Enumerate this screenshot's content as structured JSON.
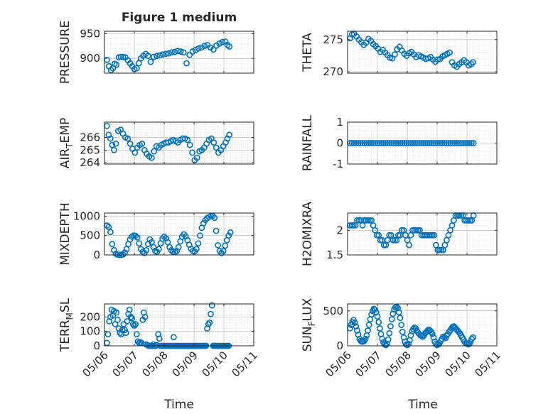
{
  "figure": {
    "title": "Figure 1 medium",
    "marker_color": "#0072BD",
    "axis_color": "#262626",
    "grid_color": "#d9d9d9"
  },
  "x_axis": {
    "label": "Time",
    "range": [
      "2023-05-06",
      "2023-05-11"
    ],
    "tick_labels": [
      "05/06",
      "05/07",
      "05/08",
      "05/09",
      "05/10",
      "05/11"
    ]
  },
  "chart_data": [
    {
      "type": "scatter",
      "name": "pressure",
      "ylabel": "PRESSURE",
      "ylim": [
        870,
        955
      ],
      "yticks": [
        900,
        950
      ],
      "x_days": [
        0.08,
        0.15,
        0.22,
        0.28,
        0.34,
        0.4,
        0.48,
        0.55,
        0.62,
        0.7,
        0.78,
        0.86,
        0.93,
        1.0,
        1.08,
        1.15,
        1.22,
        1.3,
        1.38,
        1.46,
        1.55,
        1.65,
        1.75,
        1.85,
        1.95,
        2.05,
        2.15,
        2.25,
        2.35,
        2.45,
        2.55,
        2.65,
        2.75,
        2.85,
        2.95,
        3.05,
        3.15,
        3.25,
        3.35,
        3.45,
        3.55,
        3.65,
        3.75,
        3.85,
        3.95,
        4.05,
        4.12,
        4.18
      ],
      "y": [
        897,
        884,
        876,
        880,
        889,
        887,
        902,
        903,
        903,
        902,
        896,
        890,
        884,
        878,
        880,
        890,
        900,
        905,
        909,
        905,
        893,
        903,
        905,
        906,
        908,
        909,
        910,
        912,
        913,
        915,
        914,
        912,
        890,
        907,
        914,
        917,
        920,
        922,
        925,
        927,
        922,
        918,
        926,
        930,
        933,
        934,
        927,
        924
      ]
    },
    {
      "type": "scatter",
      "name": "theta",
      "ylabel": "THETA",
      "ylim": [
        269.8,
        276.3
      ],
      "yticks": [
        270,
        275
      ],
      "x_days": [
        0.08,
        0.15,
        0.22,
        0.3,
        0.38,
        0.46,
        0.54,
        0.62,
        0.7,
        0.78,
        0.86,
        0.94,
        1.02,
        1.1,
        1.18,
        1.26,
        1.34,
        1.42,
        1.5,
        1.58,
        1.66,
        1.74,
        1.82,
        1.9,
        1.98,
        2.06,
        2.14,
        2.22,
        2.3,
        2.38,
        2.46,
        2.54,
        2.62,
        2.7,
        2.78,
        2.86,
        2.94,
        3.02,
        3.1,
        3.18,
        3.26,
        3.34,
        3.42,
        3.5,
        3.58,
        3.66,
        3.74,
        3.82,
        3.9,
        3.98,
        4.06,
        4.14,
        4.2
      ],
      "y": [
        275.2,
        275.8,
        275.9,
        275.5,
        275.0,
        274.6,
        274.2,
        274.5,
        275.1,
        274.8,
        274.3,
        274.0,
        273.6,
        273.1,
        273.4,
        273.0,
        272.6,
        272.2,
        272.1,
        272.7,
        273.5,
        273.9,
        273.3,
        272.8,
        272.5,
        272.9,
        273.1,
        272.7,
        272.3,
        272.6,
        272.4,
        272.2,
        272.0,
        272.1,
        272.3,
        271.9,
        271.6,
        271.9,
        272.0,
        272.4,
        272.6,
        272.8,
        273.0,
        271.5,
        271.0,
        270.8,
        271.2,
        271.5,
        271.8,
        271.5,
        271.0,
        271.2,
        271.5
      ]
    },
    {
      "type": "scatter",
      "name": "air_temp",
      "ylabel": "AIR_TEMP",
      "ylim": [
        263.9,
        267.2
      ],
      "yticks": [
        264,
        265,
        266
      ],
      "x_days": [
        0.08,
        0.14,
        0.2,
        0.26,
        0.32,
        0.38,
        0.46,
        0.54,
        0.62,
        0.7,
        0.78,
        0.86,
        0.94,
        1.02,
        1.1,
        1.18,
        1.26,
        1.34,
        1.42,
        1.5,
        1.58,
        1.66,
        1.74,
        1.82,
        1.9,
        1.98,
        2.06,
        2.14,
        2.22,
        2.3,
        2.38,
        2.46,
        2.54,
        2.62,
        2.7,
        2.78,
        2.86,
        2.94,
        3.02,
        3.1,
        3.18,
        3.26,
        3.34,
        3.42,
        3.5,
        3.58,
        3.66,
        3.74,
        3.82,
        3.9,
        3.98,
        4.06,
        4.12,
        4.18
      ],
      "y": [
        266.9,
        266.2,
        265.9,
        265.4,
        265.0,
        265.5,
        266.5,
        266.6,
        266.3,
        266.0,
        265.9,
        265.5,
        265.1,
        264.8,
        265.2,
        265.4,
        265.5,
        265.0,
        264.7,
        264.5,
        264.4,
        264.9,
        265.3,
        265.2,
        265.4,
        265.5,
        265.6,
        265.6,
        265.7,
        265.8,
        265.7,
        265.6,
        265.8,
        265.9,
        265.9,
        265.8,
        265.4,
        264.8,
        264.2,
        264.4,
        264.9,
        265.0,
        265.2,
        265.5,
        265.8,
        265.9,
        265.6,
        265.2,
        264.8,
        265.0,
        265.3,
        265.6,
        265.9,
        266.2
      ]
    },
    {
      "type": "scatter",
      "name": "rainfall",
      "ylabel": "RAINFALL",
      "ylim": [
        -1,
        1
      ],
      "yticks": [
        -1,
        0,
        1
      ],
      "x_start": 0.08,
      "x_end": 4.22,
      "count": 60,
      "y_constant": 0
    },
    {
      "type": "scatter",
      "name": "mixdepth",
      "ylabel": "MIXDEPTH",
      "ylim": [
        0,
        1080
      ],
      "yticks": [
        0,
        500,
        1000
      ],
      "x_days": [
        0.08,
        0.14,
        0.2,
        0.26,
        0.32,
        0.38,
        0.44,
        0.5,
        0.56,
        0.62,
        0.68,
        0.74,
        0.8,
        0.86,
        0.92,
        0.98,
        1.04,
        1.1,
        1.16,
        1.22,
        1.28,
        1.34,
        1.4,
        1.46,
        1.52,
        1.58,
        1.64,
        1.7,
        1.76,
        1.82,
        1.88,
        1.94,
        2.0,
        2.06,
        2.12,
        2.18,
        2.24,
        2.3,
        2.36,
        2.42,
        2.48,
        2.54,
        2.6,
        2.66,
        2.72,
        2.78,
        2.84,
        2.9,
        2.96,
        3.02,
        3.08,
        3.14,
        3.2,
        3.26,
        3.32,
        3.38,
        3.44,
        3.5,
        3.56,
        3.62,
        3.68,
        3.74,
        3.8,
        3.86,
        3.92,
        3.98,
        4.04,
        4.1,
        4.16,
        4.22
      ],
      "y": [
        760,
        720,
        590,
        280,
        120,
        30,
        10,
        5,
        5,
        10,
        60,
        150,
        280,
        400,
        470,
        500,
        495,
        450,
        300,
        150,
        80,
        50,
        120,
        280,
        400,
        330,
        200,
        100,
        80,
        150,
        300,
        420,
        470,
        430,
        330,
        200,
        120,
        80,
        70,
        100,
        200,
        350,
        470,
        530,
        480,
        380,
        260,
        160,
        100,
        90,
        150,
        300,
        500,
        700,
        820,
        900,
        950,
        980,
        1000,
        1010,
        960,
        620,
        250,
        100,
        50,
        100,
        240,
        380,
        500,
        580
      ]
    },
    {
      "type": "scatter",
      "name": "h2omixra",
      "ylabel": "H2OMIXRA",
      "ylim": [
        1.5,
        2.35
      ],
      "yticks": [
        1.5,
        2
      ],
      "x_days": [
        0.08,
        0.14,
        0.2,
        0.26,
        0.32,
        0.38,
        0.44,
        0.5,
        0.56,
        0.62,
        0.68,
        0.74,
        0.8,
        0.86,
        0.92,
        0.98,
        1.04,
        1.1,
        1.16,
        1.22,
        1.28,
        1.34,
        1.4,
        1.46,
        1.52,
        1.58,
        1.64,
        1.7,
        1.76,
        1.82,
        1.88,
        1.94,
        2.0,
        2.06,
        2.12,
        2.18,
        2.24,
        2.3,
        2.36,
        2.42,
        2.48,
        2.54,
        2.6,
        2.66,
        2.72,
        2.78,
        2.84,
        2.9,
        2.96,
        3.02,
        3.08,
        3.14,
        3.2,
        3.26,
        3.32,
        3.38,
        3.44,
        3.5,
        3.56,
        3.62,
        3.68,
        3.74,
        3.8,
        3.86,
        3.92,
        3.98,
        4.04,
        4.1,
        4.16,
        4.22
      ],
      "y": [
        2.1,
        2.1,
        2.1,
        2.1,
        2.2,
        2.2,
        2.2,
        2.1,
        2.2,
        2.2,
        2.2,
        2.2,
        2.2,
        2.1,
        2.0,
        1.9,
        1.9,
        1.8,
        1.8,
        1.7,
        1.7,
        1.8,
        1.9,
        1.9,
        1.8,
        1.8,
        1.8,
        1.9,
        1.9,
        2.0,
        2.0,
        1.9,
        1.8,
        1.7,
        1.9,
        2.0,
        2.0,
        2.0,
        2.0,
        2.0,
        1.9,
        1.9,
        1.9,
        1.9,
        1.9,
        1.9,
        1.9,
        1.9,
        1.7,
        1.6,
        1.6,
        1.6,
        1.6,
        1.7,
        1.8,
        1.9,
        2.0,
        2.1,
        2.2,
        2.3,
        2.3,
        2.3,
        2.3,
        2.3,
        2.2,
        2.2,
        2.2,
        2.2,
        2.2,
        2.3
      ]
    },
    {
      "type": "scatter",
      "name": "terr_msl",
      "ylabel": "TERR_MSL",
      "ylim": [
        0,
        290
      ],
      "yticks": [
        0,
        100,
        200
      ],
      "x_days": [
        0.08,
        0.12,
        0.16,
        0.2,
        0.24,
        0.28,
        0.32,
        0.36,
        0.4,
        0.44,
        0.48,
        0.52,
        0.56,
        0.6,
        0.64,
        0.68,
        0.72,
        0.76,
        0.8,
        0.84,
        0.88,
        0.92,
        0.96,
        1.0,
        1.04,
        1.08,
        1.12,
        1.16,
        1.2,
        1.24,
        1.28,
        1.32,
        1.36,
        1.4,
        1.44,
        1.48,
        1.52,
        1.56,
        1.6,
        1.64,
        1.68,
        1.72,
        1.76,
        1.8,
        1.84,
        1.88,
        1.92,
        1.96,
        2.0,
        2.04,
        2.08,
        2.12,
        2.16,
        2.2,
        2.24,
        2.28,
        2.32,
        2.36,
        2.4,
        2.44,
        2.48,
        2.52,
        2.56,
        2.6,
        2.64,
        2.68,
        2.72,
        2.76,
        2.8,
        2.84,
        2.88,
        2.92,
        2.96,
        3.0,
        3.04,
        3.08,
        3.12,
        3.16,
        3.2,
        3.24,
        3.28,
        3.32,
        3.36,
        3.4,
        3.44,
        3.48,
        3.52,
        3.56,
        3.6,
        3.64,
        3.68,
        3.72,
        3.76,
        3.8,
        3.84,
        3.88,
        3.92,
        3.96,
        4.0,
        4.04,
        4.08,
        4.12,
        4.16
      ],
      "y": [
        20,
        80,
        170,
        200,
        250,
        210,
        240,
        150,
        230,
        180,
        120,
        90,
        80,
        110,
        150,
        110,
        90,
        170,
        220,
        250,
        200,
        190,
        150,
        140,
        150,
        80,
        30,
        20,
        25,
        20,
        180,
        230,
        200,
        10,
        5,
        0,
        0,
        0,
        0,
        10,
        0,
        0,
        5,
        80,
        50,
        0,
        0,
        0,
        0,
        0,
        0,
        0,
        0,
        0,
        0,
        0,
        60,
        0,
        0,
        0,
        0,
        0,
        0,
        0,
        0,
        0,
        0,
        0,
        0,
        0,
        0,
        0,
        0,
        0,
        0,
        0,
        0,
        0,
        0,
        0,
        0,
        0,
        0,
        0,
        120,
        150,
        160,
        220,
        280,
        0,
        0,
        0,
        0,
        0,
        0,
        0,
        0,
        0,
        0,
        0,
        0,
        0,
        0
      ],
      "y_note_ignored": ""
    },
    {
      "type": "scatter",
      "name": "sun_flux",
      "ylabel": "SUN_FLUX",
      "ylim": [
        0,
        600
      ],
      "yticks": [
        0,
        500
      ],
      "x_days": [
        0.08,
        0.12,
        0.16,
        0.2,
        0.24,
        0.28,
        0.32,
        0.36,
        0.4,
        0.44,
        0.48,
        0.52,
        0.56,
        0.6,
        0.64,
        0.68,
        0.72,
        0.76,
        0.8,
        0.84,
        0.88,
        0.92,
        0.96,
        1.0,
        1.04,
        1.08,
        1.12,
        1.16,
        1.2,
        1.24,
        1.28,
        1.32,
        1.36,
        1.4,
        1.44,
        1.48,
        1.52,
        1.56,
        1.6,
        1.64,
        1.68,
        1.72,
        1.76,
        1.8,
        1.84,
        1.88,
        1.92,
        1.96,
        2.0,
        2.04,
        2.08,
        2.12,
        2.16,
        2.2,
        2.24,
        2.28,
        2.32,
        2.36,
        2.4,
        2.44,
        2.48,
        2.52,
        2.56,
        2.6,
        2.64,
        2.68,
        2.72,
        2.76,
        2.8,
        2.84,
        2.88,
        2.92,
        2.96,
        3.0,
        3.04,
        3.08,
        3.12,
        3.16,
        3.2,
        3.24,
        3.28,
        3.32,
        3.36,
        3.4,
        3.44,
        3.48,
        3.52,
        3.56,
        3.6,
        3.64,
        3.68,
        3.72,
        3.76,
        3.8,
        3.84,
        3.88,
        3.92,
        3.96,
        4.0,
        4.04,
        4.08,
        4.12,
        4.16,
        4.2
      ],
      "y": [
        250,
        300,
        340,
        370,
        330,
        280,
        220,
        160,
        100,
        70,
        60,
        60,
        70,
        100,
        150,
        220,
        300,
        380,
        450,
        500,
        530,
        520,
        480,
        420,
        340,
        250,
        170,
        100,
        50,
        20,
        10,
        30,
        90,
        180,
        280,
        380,
        460,
        520,
        550,
        560,
        540,
        480,
        400,
        300,
        200,
        120,
        60,
        20,
        10,
        30,
        80,
        150,
        210,
        240,
        260,
        250,
        220,
        190,
        170,
        150,
        140,
        130,
        150,
        180,
        200,
        220,
        230,
        220,
        200,
        170,
        120,
        60,
        30,
        10,
        20,
        40,
        70,
        100,
        130,
        120,
        110,
        150,
        170,
        200,
        220,
        250,
        270,
        280,
        260,
        240,
        220,
        200,
        180,
        150,
        120,
        90,
        60,
        40,
        30,
        20,
        30,
        60,
        100,
        120
      ]
    }
  ]
}
